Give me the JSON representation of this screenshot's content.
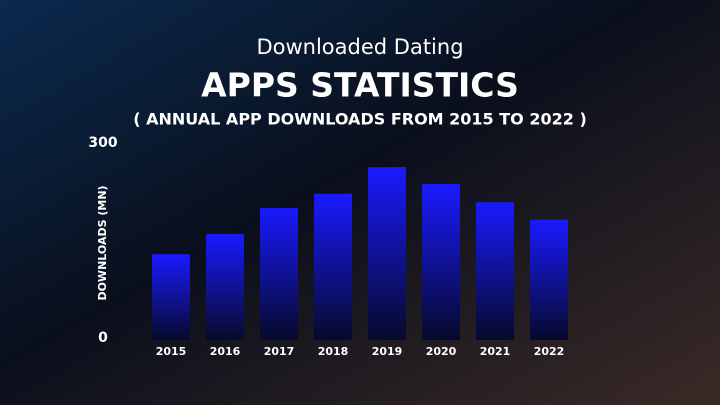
{
  "chart_data": {
    "type": "bar",
    "title": "Downloaded Dating",
    "subtitle": "APPS STATISTICS",
    "caption": "( ANNUAL APP DOWNLOADS FROM 2015 TO 2022 )",
    "y_label": "DOWNLOADS (MN)",
    "categories": [
      "2015",
      "2016",
      "2017",
      "2018",
      "2019",
      "2020",
      "2021",
      "2022"
    ],
    "values": [
      132,
      163,
      203,
      225,
      266,
      240,
      212,
      185
    ],
    "color": "#1a1aff",
    "ylim": [
      0,
      300
    ],
    "yticks": [
      0,
      300
    ],
    "grid": false
  }
}
